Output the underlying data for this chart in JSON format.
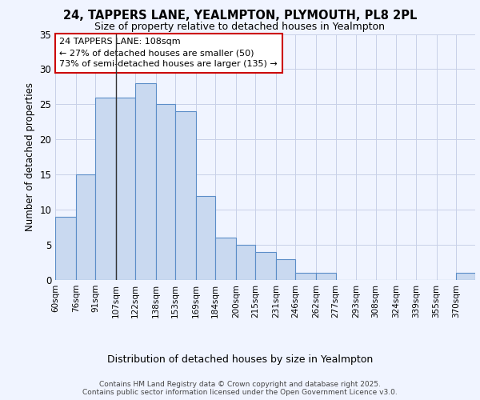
{
  "title_line1": "24, TAPPERS LANE, YEALMPTON, PLYMOUTH, PL8 2PL",
  "title_line2": "Size of property relative to detached houses in Yealmpton",
  "xlabel": "Distribution of detached houses by size in Yealmpton",
  "ylabel": "Number of detached properties",
  "footer_line1": "Contains HM Land Registry data © Crown copyright and database right 2025.",
  "footer_line2": "Contains public sector information licensed under the Open Government Licence v3.0.",
  "annotation_line1": "24 TAPPERS LANE: 108sqm",
  "annotation_line2": "← 27% of detached houses are smaller (50)",
  "annotation_line3": "73% of semi-detached houses are larger (135) →",
  "bin_labels": [
    "60sqm",
    "76sqm",
    "91sqm",
    "107sqm",
    "122sqm",
    "138sqm",
    "153sqm",
    "169sqm",
    "184sqm",
    "200sqm",
    "215sqm",
    "231sqm",
    "246sqm",
    "262sqm",
    "277sqm",
    "293sqm",
    "308sqm",
    "324sqm",
    "339sqm",
    "355sqm",
    "370sqm"
  ],
  "bin_edges": [
    60,
    76,
    91,
    107,
    122,
    138,
    153,
    169,
    184,
    200,
    215,
    231,
    246,
    262,
    277,
    293,
    308,
    324,
    339,
    355,
    370,
    385
  ],
  "bar_values": [
    9,
    15,
    26,
    26,
    28,
    25,
    24,
    12,
    6,
    5,
    4,
    3,
    1,
    1,
    0,
    0,
    0,
    0,
    0,
    0,
    1
  ],
  "bar_color": "#c9d9f0",
  "bar_edge_color": "#5b8dc8",
  "vline_color": "#333333",
  "vline_x": 107,
  "bg_color": "#f0f4ff",
  "grid_color": "#c8d0e8",
  "annotation_box_color": "#ffffff",
  "annotation_box_edge": "#cc0000",
  "ylim": [
    0,
    35
  ],
  "yticks": [
    0,
    5,
    10,
    15,
    20,
    25,
    30,
    35
  ]
}
